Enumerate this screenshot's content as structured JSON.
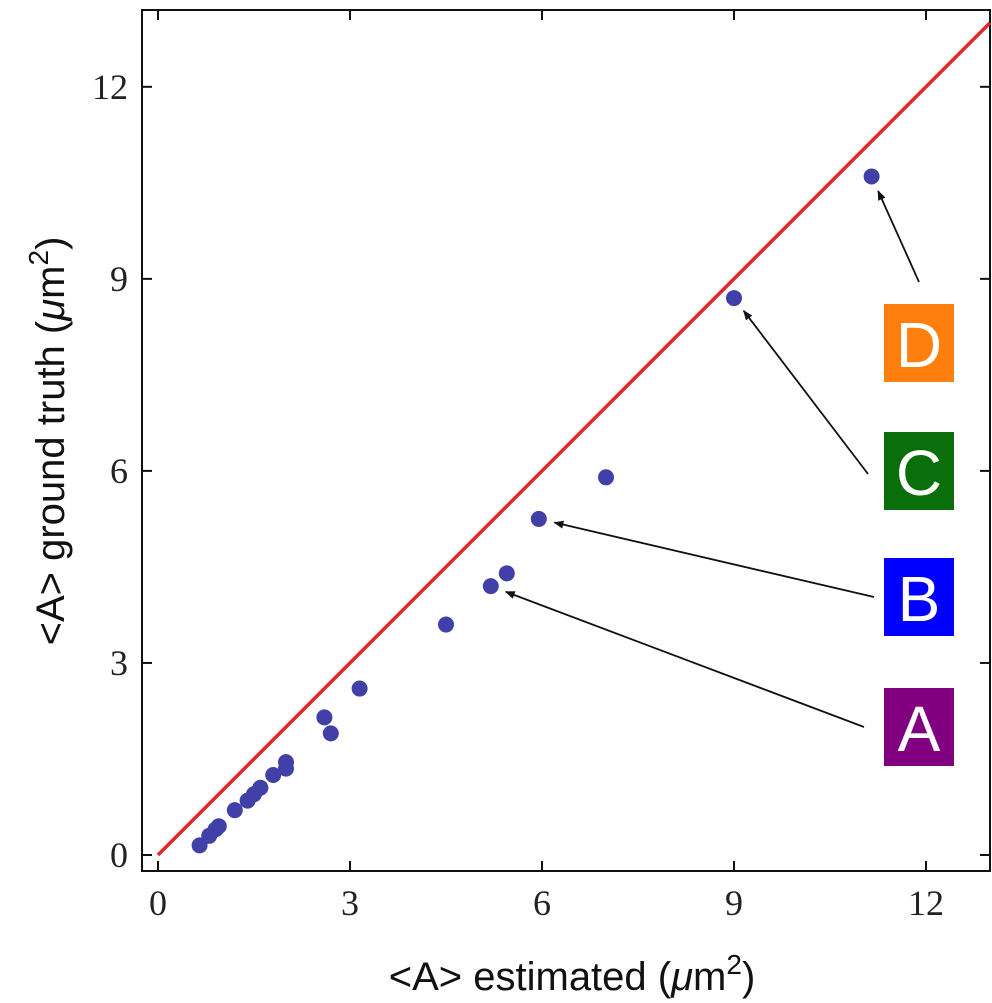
{
  "chart_data": {
    "type": "scatter",
    "title": "",
    "xlabel": "<A> estimated (μm2)",
    "ylabel": "<A> ground truth (μm2)",
    "xlabel_parts": {
      "prefix": "<A> estimated (",
      "mu": "μ",
      "unit": "m",
      "sup": "2",
      "suffix": ")"
    },
    "ylabel_parts": {
      "prefix": "<A> ground truth (",
      "mu": "μ",
      "unit": "m",
      "sup": "2",
      "suffix": ")"
    },
    "xlim": [
      -0.25,
      13
    ],
    "ylim": [
      -0.25,
      13.2
    ],
    "xticks": [
      0,
      3,
      6,
      9,
      12
    ],
    "yticks": [
      0,
      3,
      6,
      9,
      12
    ],
    "xtick_labels": [
      "0",
      "3",
      "6",
      "9",
      "12"
    ],
    "ytick_labels": [
      "0",
      "3",
      "6",
      "9",
      "12"
    ],
    "grid": false,
    "reference_line": {
      "from": [
        0,
        0
      ],
      "to": [
        13,
        13
      ],
      "color": "#e8232a"
    },
    "marker_color": "#4040a8",
    "points": [
      {
        "x": 0.65,
        "y": 0.15
      },
      {
        "x": 0.8,
        "y": 0.3
      },
      {
        "x": 0.9,
        "y": 0.4
      },
      {
        "x": 0.95,
        "y": 0.45
      },
      {
        "x": 1.2,
        "y": 0.7
      },
      {
        "x": 1.4,
        "y": 0.85
      },
      {
        "x": 1.5,
        "y": 0.95
      },
      {
        "x": 1.6,
        "y": 1.05
      },
      {
        "x": 1.8,
        "y": 1.25
      },
      {
        "x": 2.0,
        "y": 1.35
      },
      {
        "x": 2.0,
        "y": 1.45
      },
      {
        "x": 2.6,
        "y": 2.15
      },
      {
        "x": 2.7,
        "y": 1.9
      },
      {
        "x": 3.15,
        "y": 2.6
      },
      {
        "x": 4.5,
        "y": 3.6
      },
      {
        "x": 5.2,
        "y": 4.2
      },
      {
        "x": 5.45,
        "y": 4.4
      },
      {
        "x": 5.95,
        "y": 5.25
      },
      {
        "x": 7.0,
        "y": 5.9
      },
      {
        "x": 9.0,
        "y": 8.7
      },
      {
        "x": 11.15,
        "y": 10.6
      }
    ],
    "annotations": [
      {
        "label": "D",
        "color": "#ff7f0e",
        "target": {
          "x": 11.15,
          "y": 10.6
        }
      },
      {
        "label": "C",
        "color": "#0a6e0a",
        "target": {
          "x": 9.0,
          "y": 8.7
        }
      },
      {
        "label": "B",
        "color": "#0000ff",
        "target": {
          "x": 5.95,
          "y": 5.25
        }
      },
      {
        "label": "A",
        "color": "#800080",
        "target": {
          "x": 5.2,
          "y": 4.2
        }
      }
    ]
  }
}
